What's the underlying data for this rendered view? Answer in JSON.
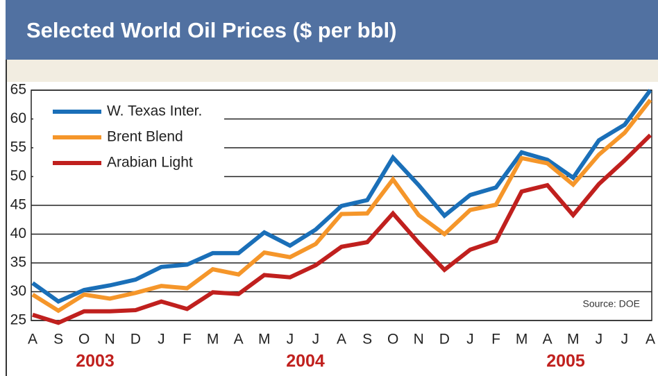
{
  "chart_data": {
    "type": "line",
    "title": "Selected World Oil Prices ($ per bbl)",
    "categories": [
      "A",
      "S",
      "O",
      "N",
      "D",
      "J",
      "F",
      "M",
      "A",
      "M",
      "J",
      "J",
      "A",
      "S",
      "O",
      "N",
      "D",
      "J",
      "F",
      "M",
      "A",
      "M",
      "J",
      "J",
      "A"
    ],
    "year_labels": [
      "2003",
      "2004",
      "2005"
    ],
    "source": "Source: DOE",
    "series": [
      {
        "name": "W. Texas Inter.",
        "color": "#1a6fb8",
        "values": [
          31.5,
          28.3,
          30.3,
          31.1,
          32.1,
          34.3,
          34.7,
          36.7,
          36.7,
          40.3,
          38,
          40.8,
          44.9,
          45.9,
          53.3,
          48.5,
          43.2,
          46.8,
          48.1,
          54.2,
          52.9,
          49.8,
          56.3,
          59,
          65
        ]
      },
      {
        "name": "Brent Blend",
        "color": "#f5962a",
        "values": [
          29.5,
          26.7,
          29.5,
          28.8,
          29.8,
          31,
          30.6,
          33.9,
          33,
          36.8,
          36,
          38.3,
          43.5,
          43.6,
          49.5,
          43.3,
          40,
          44.2,
          45.1,
          53.2,
          52.3,
          48.6,
          53.8,
          57.6,
          63.3
        ]
      },
      {
        "name": "Arabian Light",
        "color": "#c0201e",
        "values": [
          26,
          24.6,
          26.6,
          26.6,
          26.8,
          28.3,
          27,
          29.9,
          29.6,
          32.9,
          32.5,
          34.6,
          37.8,
          38.6,
          43.6,
          38.5,
          33.8,
          37.3,
          38.8,
          47.4,
          48.5,
          43.3,
          48.7,
          52.8,
          57.2
        ]
      }
    ],
    "ylim": [
      25,
      65
    ],
    "yticks": [
      25,
      30,
      35,
      40,
      45,
      50,
      55,
      60,
      65
    ],
    "grid": true,
    "legend": "top-left"
  }
}
